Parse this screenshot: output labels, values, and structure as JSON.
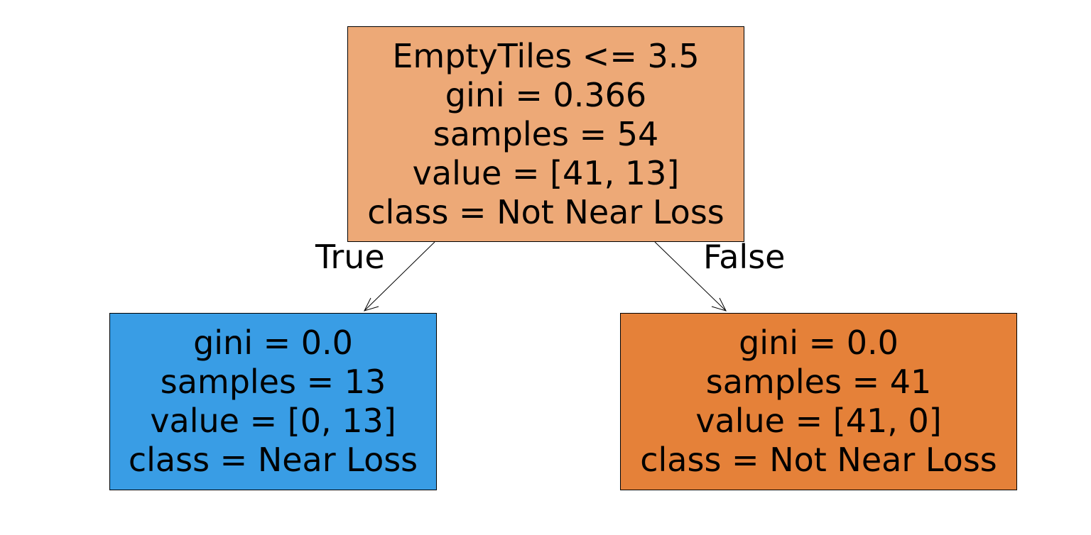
{
  "tree": {
    "root": {
      "lines": [
        "EmptyTiles <= 3.5",
        "gini = 0.366",
        "samples = 54",
        "value = [41, 13]",
        "class = Not Near Loss"
      ],
      "color": "#eda977"
    },
    "left": {
      "lines": [
        "gini = 0.0",
        "samples = 13",
        "value = [0, 13]",
        "class = Near Loss"
      ],
      "color": "#399de5"
    },
    "right": {
      "lines": [
        "gini = 0.0",
        "samples = 41",
        "value = [41, 0]",
        "class = Not Near Loss"
      ],
      "color": "#e58139"
    },
    "edges": {
      "true_label": "True",
      "false_label": "False"
    }
  }
}
